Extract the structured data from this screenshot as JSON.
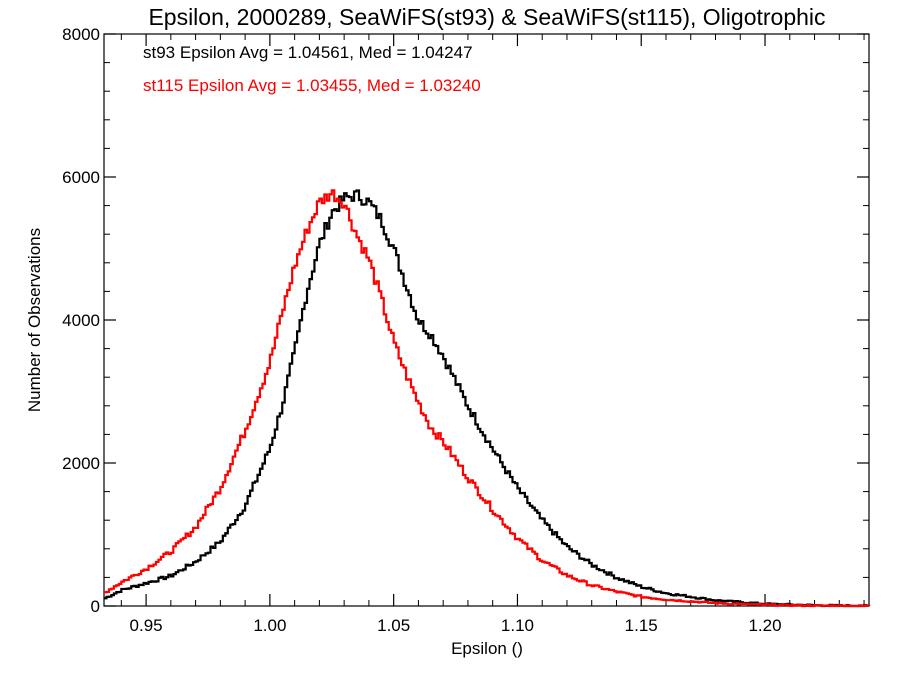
{
  "chart_data": {
    "type": "line",
    "title": "Epsilon, 2000289, SeaWiFS(st93) & SeaWiFS(st115), Oligotrophic",
    "xlabel": "Epsilon ()",
    "ylabel": "Number of Observations",
    "xlim": [
      0.933,
      1.242
    ],
    "ylim": [
      0,
      8000
    ],
    "xticks": [
      0.95,
      1.0,
      1.05,
      1.1,
      1.15,
      1.2
    ],
    "xtick_labels": [
      "0.95",
      "1.00",
      "1.05",
      "1.10",
      "1.15",
      "1.20"
    ],
    "yticks": [
      0,
      2000,
      4000,
      6000,
      8000
    ],
    "ytick_labels": [
      "0",
      "2000",
      "4000",
      "6000",
      "8000"
    ],
    "grid": false,
    "step": true,
    "annotations": [
      {
        "text": "st93 Epsilon Avg = 1.04561, Med = 1.04247",
        "color": "#000000"
      },
      {
        "text": "st115 Epsilon Avg = 1.03455, Med = 1.03240",
        "color": "#ff0000"
      }
    ],
    "series": [
      {
        "color": "#000000",
        "x": [
          0.933,
          0.94,
          0.95,
          0.96,
          0.97,
          0.98,
          0.99,
          1.0,
          1.005,
          1.01,
          1.015,
          1.02,
          1.025,
          1.03,
          1.035,
          1.04,
          1.045,
          1.05,
          1.055,
          1.06,
          1.065,
          1.07,
          1.075,
          1.08,
          1.09,
          1.1,
          1.11,
          1.12,
          1.13,
          1.14,
          1.15,
          1.16,
          1.18,
          1.2,
          1.22,
          1.242
        ],
        "y": [
          100,
          220,
          320,
          420,
          620,
          900,
          1400,
          2200,
          2800,
          3550,
          4400,
          5050,
          5500,
          5700,
          5750,
          5650,
          5400,
          5000,
          4500,
          4000,
          3800,
          3500,
          3150,
          2800,
          2200,
          1650,
          1200,
          830,
          580,
          400,
          270,
          180,
          80,
          30,
          10,
          0
        ]
      },
      {
        "color": "#ff0000",
        "x": [
          0.933,
          0.94,
          0.95,
          0.96,
          0.97,
          0.98,
          0.99,
          1.0,
          1.005,
          1.01,
          1.015,
          1.02,
          1.025,
          1.03,
          1.035,
          1.04,
          1.045,
          1.05,
          1.055,
          1.06,
          1.065,
          1.07,
          1.075,
          1.08,
          1.09,
          1.1,
          1.11,
          1.12,
          1.13,
          1.14,
          1.15,
          1.16,
          1.18,
          1.2,
          1.22,
          1.242
        ],
        "y": [
          180,
          330,
          520,
          760,
          1100,
          1650,
          2450,
          3400,
          4100,
          4750,
          5250,
          5650,
          5780,
          5650,
          5200,
          4850,
          4300,
          3700,
          3250,
          2850,
          2500,
          2300,
          2050,
          1800,
          1350,
          950,
          640,
          430,
          290,
          200,
          130,
          90,
          40,
          15,
          5,
          0
        ]
      }
    ]
  }
}
